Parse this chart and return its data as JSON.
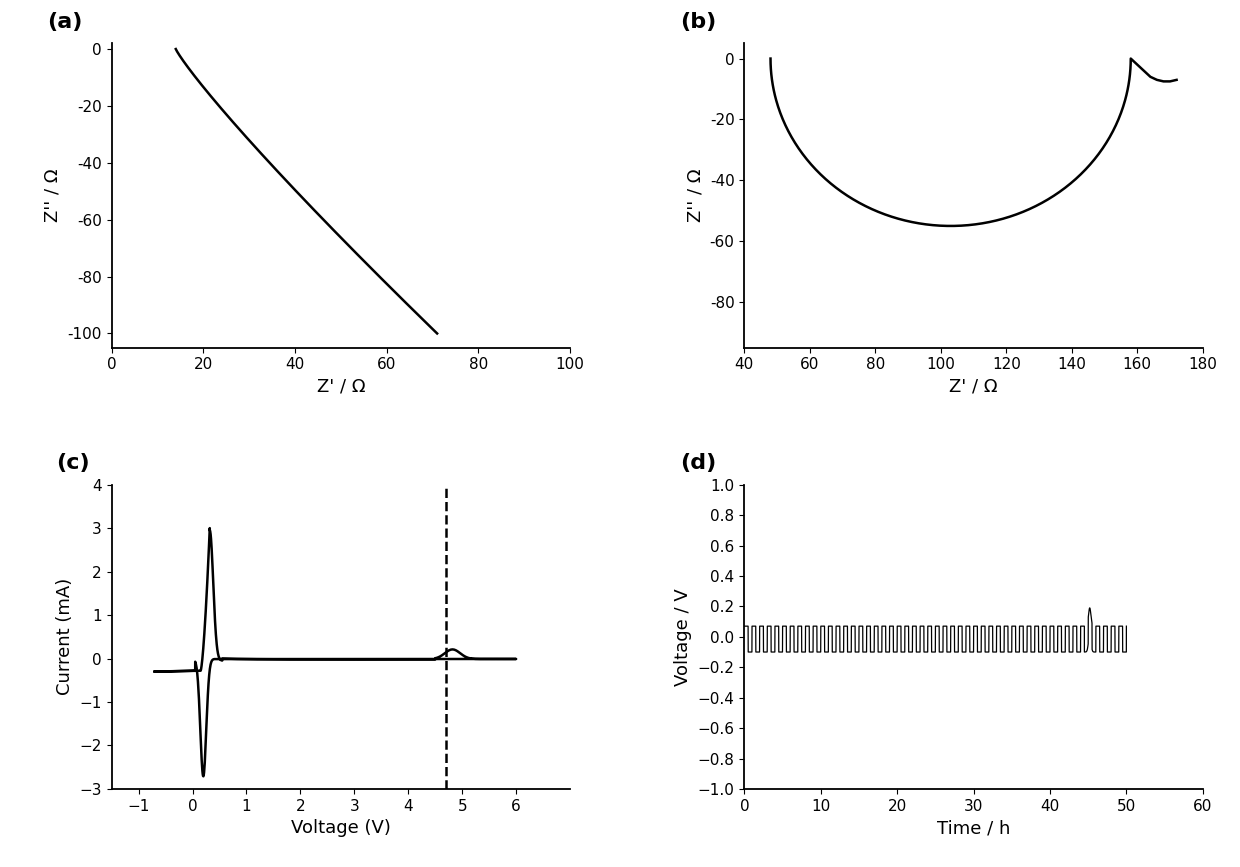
{
  "fig_width": 12.4,
  "fig_height": 8.67,
  "dpi": 100,
  "background": "#ffffff",
  "line_color": "#000000",
  "line_width": 1.8,
  "panel_labels": [
    "(a)",
    "(b)",
    "(c)",
    "(d)"
  ],
  "panel_label_fontsize": 16,
  "panel_label_fontweight": "bold",
  "tick_fontsize": 11,
  "axis_label_fontsize": 13,
  "a": {
    "xlabel": "Z' / Ω",
    "ylabel": "Z'' / Ω",
    "xlim": [
      0,
      100
    ],
    "ylim": [
      -105,
      2
    ],
    "xticks": [
      0,
      20,
      40,
      60,
      80,
      100
    ],
    "yticks": [
      0,
      -20,
      -40,
      -60,
      -80,
      -100
    ]
  },
  "b": {
    "xlabel": "Z' / Ω",
    "ylabel": "Z'' / Ω",
    "xlim": [
      40,
      180
    ],
    "ylim": [
      -95,
      5
    ],
    "xticks": [
      40,
      60,
      80,
      100,
      120,
      140,
      160,
      180
    ],
    "yticks": [
      0,
      -20,
      -40,
      -60,
      -80
    ]
  },
  "c": {
    "xlabel": "Voltage (V)",
    "ylabel": "Current (mA)",
    "xlim": [
      -1.5,
      7
    ],
    "ylim": [
      -3,
      4
    ],
    "xticks": [
      -1,
      0,
      1,
      2,
      3,
      4,
      5,
      6
    ],
    "yticks": [
      -3,
      -2,
      -1,
      0,
      1,
      2,
      3,
      4
    ],
    "dashed_x": 4.7
  },
  "d": {
    "xlabel": "Time / h",
    "ylabel": "Voltage / V",
    "xlim": [
      0,
      60
    ],
    "ylim": [
      -1.0,
      1.0
    ],
    "xticks": [
      0,
      10,
      20,
      30,
      40,
      50,
      60
    ],
    "yticks": [
      -1.0,
      -0.8,
      -0.6,
      -0.4,
      -0.2,
      0.0,
      0.2,
      0.4,
      0.6,
      0.8,
      1.0
    ]
  }
}
